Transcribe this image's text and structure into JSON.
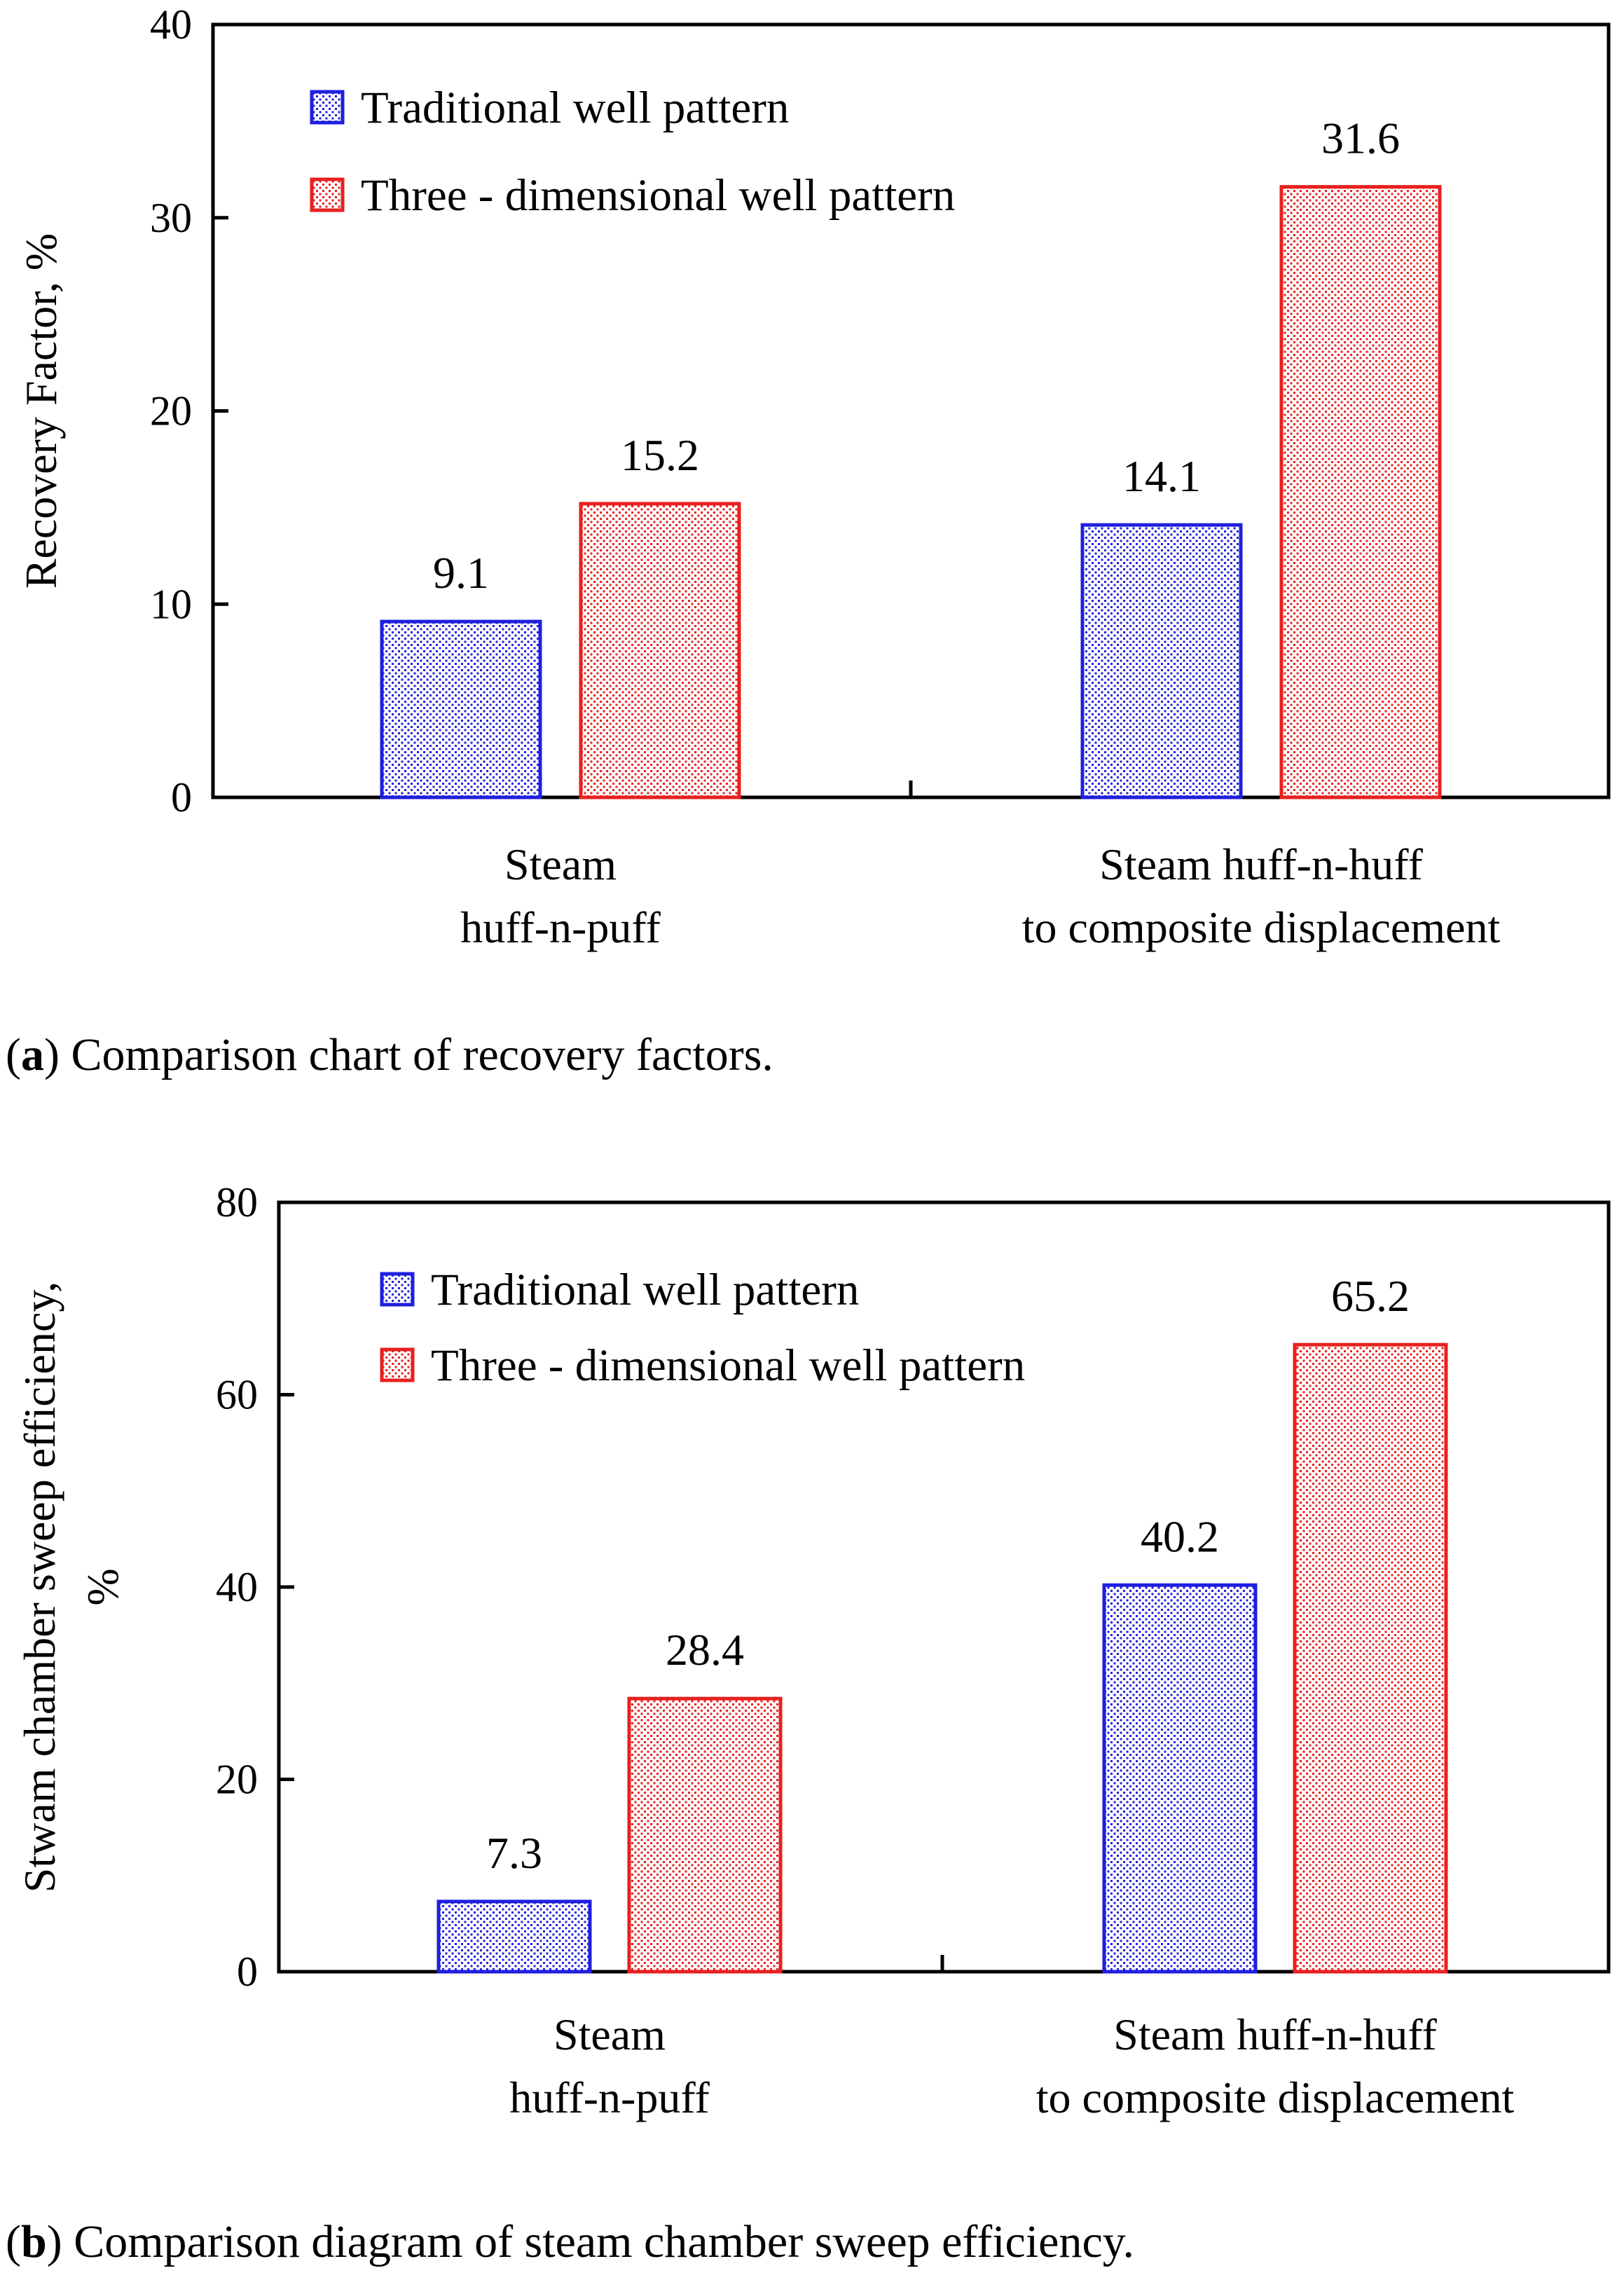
{
  "legend": {
    "traditional": "Traditional well pattern",
    "three_dimensional": "Three - dimensional well pattern"
  },
  "colors": {
    "traditional": "#1f1fe0",
    "three_dimensional": "#ea1f1f",
    "axis": "#000000"
  },
  "captions": {
    "a": {
      "label": "a",
      "text": " Comparison chart of recovery factors."
    },
    "b": {
      "label": "b",
      "text": " Comparison diagram of steam chamber sweep efficiency."
    }
  },
  "chart_data": [
    {
      "id": "a",
      "type": "bar",
      "title": "",
      "xlabel": "",
      "ylabel": "Recovery Factor,  %",
      "ylabel_lines": [
        "Recovery Factor,  %"
      ],
      "ylim": [
        0,
        40
      ],
      "yticks": [
        0,
        10,
        20,
        30,
        40
      ],
      "categories": [
        [
          "Steam",
          "huff-n-puff"
        ],
        [
          "Steam huff-n-huff",
          "to composite displacement"
        ]
      ],
      "series": [
        {
          "name": "Traditional well pattern",
          "color_key": "traditional",
          "values": [
            9.1,
            14.1
          ],
          "labels": [
            "9.1",
            "14.1"
          ]
        },
        {
          "name": "Three - dimensional well pattern",
          "color_key": "three_dimensional",
          "values": [
            15.2,
            31.6
          ],
          "labels": [
            "15.2",
            "31.6"
          ]
        }
      ],
      "legend_position": "top-left",
      "grid": false
    },
    {
      "id": "b",
      "type": "bar",
      "title": "",
      "xlabel": "",
      "ylabel": "Stwam chamber sweep efficiency, %",
      "ylabel_lines": [
        "Stwam chamber sweep efficiency,",
        "%"
      ],
      "ylim": [
        0,
        80
      ],
      "yticks": [
        0,
        20,
        40,
        60,
        80
      ],
      "categories": [
        [
          "Steam",
          "huff-n-puff"
        ],
        [
          "Steam huff-n-huff",
          "to composite displacement"
        ]
      ],
      "series": [
        {
          "name": "Traditional well pattern",
          "color_key": "traditional",
          "values": [
            7.3,
            40.2
          ],
          "labels": [
            "7.3",
            "40.2"
          ]
        },
        {
          "name": "Three - dimensional well pattern",
          "color_key": "three_dimensional",
          "values": [
            28.4,
            65.2
          ],
          "labels": [
            "28.4",
            "65.2"
          ]
        }
      ],
      "legend_position": "top-left",
      "grid": false
    }
  ]
}
